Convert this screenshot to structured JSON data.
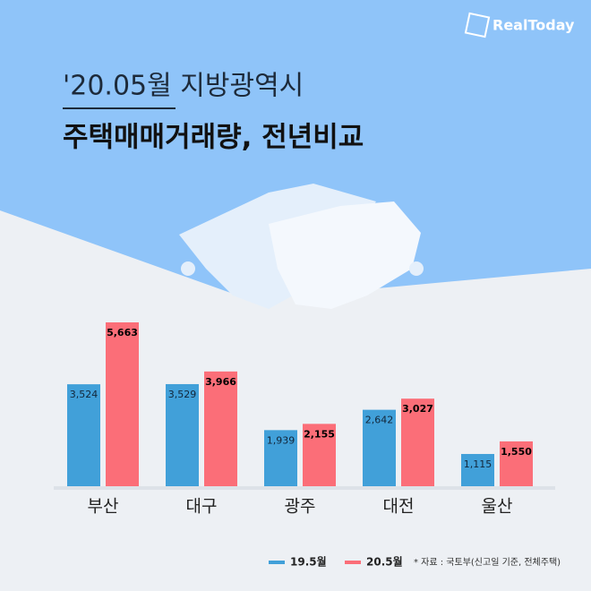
{
  "brand": "RealToday",
  "chart_data": {
    "type": "bar",
    "title": "'20.05월 지방광역시",
    "subtitle": "주택매매거래량, 전년비교",
    "categories": [
      "부산",
      "대구",
      "광주",
      "대전",
      "울산"
    ],
    "series": [
      {
        "name": "19.5월",
        "color": "#41a0d9",
        "values": [
          3524,
          3529,
          1939,
          2642,
          1115
        ],
        "value_labels": [
          "3,524",
          "3,529",
          "1,939",
          "2,642",
          "1,115"
        ]
      },
      {
        "name": "20.5월",
        "color": "#fb6e78",
        "values": [
          5663,
          3966,
          2155,
          3027,
          1550
        ],
        "value_labels": [
          "5,663",
          "3,966",
          "2,155",
          "3,027",
          "1,550"
        ]
      }
    ],
    "source": "* 자료 : 국토부(신고일 기준, 전체주택)"
  }
}
